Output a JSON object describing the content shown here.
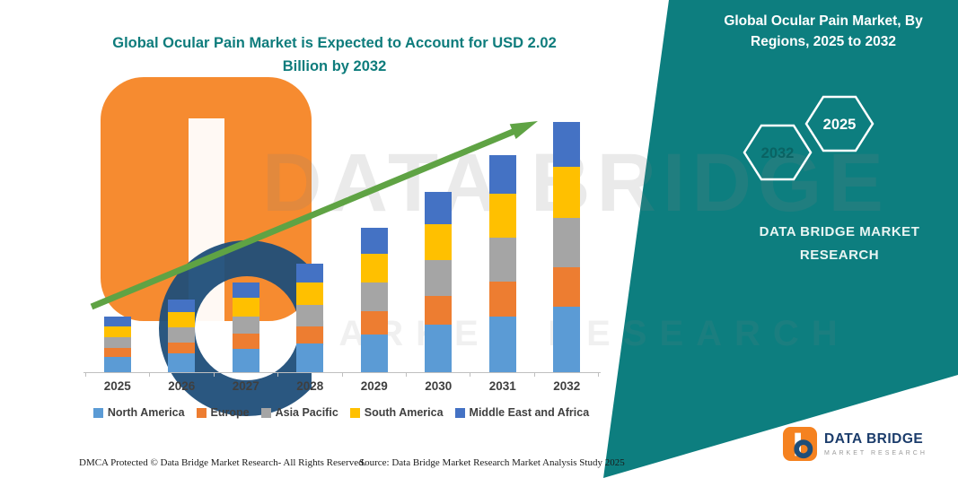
{
  "page": {
    "title": "Global Ocular Pain Market is Expected to Account for USD 2.02 Billion by 2032"
  },
  "right_panel": {
    "heading": "Global Ocular Pain Market, By Regions, 2025 to 2032",
    "hexagons": {
      "back_year": "2032",
      "front_year": "2025"
    },
    "brand_line1": "DATA BRIDGE MARKET",
    "brand_line2": "RESEARCH"
  },
  "watermark": {
    "line1": "DATA BRIDGE",
    "line2": "MARKET RESEARCH"
  },
  "footer": {
    "dmca": "DMCA Protected © Data Bridge Market Research-  All Rights Reserved.",
    "source": "Source: Data Bridge Market Research  Market Analysis Study 2025"
  },
  "logo": {
    "name": "DATA BRIDGE",
    "tagline": "MARKET RESEARCH"
  },
  "colors": {
    "teal": "#0D7E7F",
    "title_teal": "#0E7C7C",
    "arrow_green": "#5FA344",
    "axis_gray": "#BFBFBF",
    "logo_orange": "#F58220",
    "logo_navy": "#1F4E79"
  },
  "chart_data": {
    "type": "bar",
    "stacked": true,
    "title": "Global Ocular Pain Market is Expected to Account for USD 2.02 Billion by 2032",
    "unit": "USD Billion",
    "categories": [
      "2025",
      "2026",
      "2027",
      "2028",
      "2029",
      "2030",
      "2031",
      "2032"
    ],
    "series": [
      {
        "name": "North America",
        "color": "#5B9BD5",
        "values": [
          0.12,
          0.15,
          0.19,
          0.23,
          0.3,
          0.38,
          0.45,
          0.53
        ]
      },
      {
        "name": "Europe",
        "color": "#ED7D31",
        "values": [
          0.07,
          0.09,
          0.12,
          0.14,
          0.19,
          0.23,
          0.28,
          0.32
        ]
      },
      {
        "name": "Asia Pacific",
        "color": "#A5A5A5",
        "values": [
          0.09,
          0.12,
          0.14,
          0.17,
          0.23,
          0.29,
          0.35,
          0.4
        ]
      },
      {
        "name": "South America",
        "color": "#FFC000",
        "values": [
          0.09,
          0.12,
          0.15,
          0.18,
          0.23,
          0.29,
          0.35,
          0.41
        ]
      },
      {
        "name": "Middle East and Africa",
        "color": "#4472C4",
        "values": [
          0.08,
          0.1,
          0.12,
          0.15,
          0.21,
          0.26,
          0.31,
          0.36
        ]
      }
    ],
    "totals": [
      0.45,
      0.58,
      0.72,
      0.87,
      1.16,
      1.45,
      1.74,
      2.02
    ],
    "ylim": [
      0,
      2.1
    ],
    "grid": false,
    "legend_position": "bottom",
    "trend_arrow": true,
    "xlabel": "",
    "ylabel": ""
  }
}
